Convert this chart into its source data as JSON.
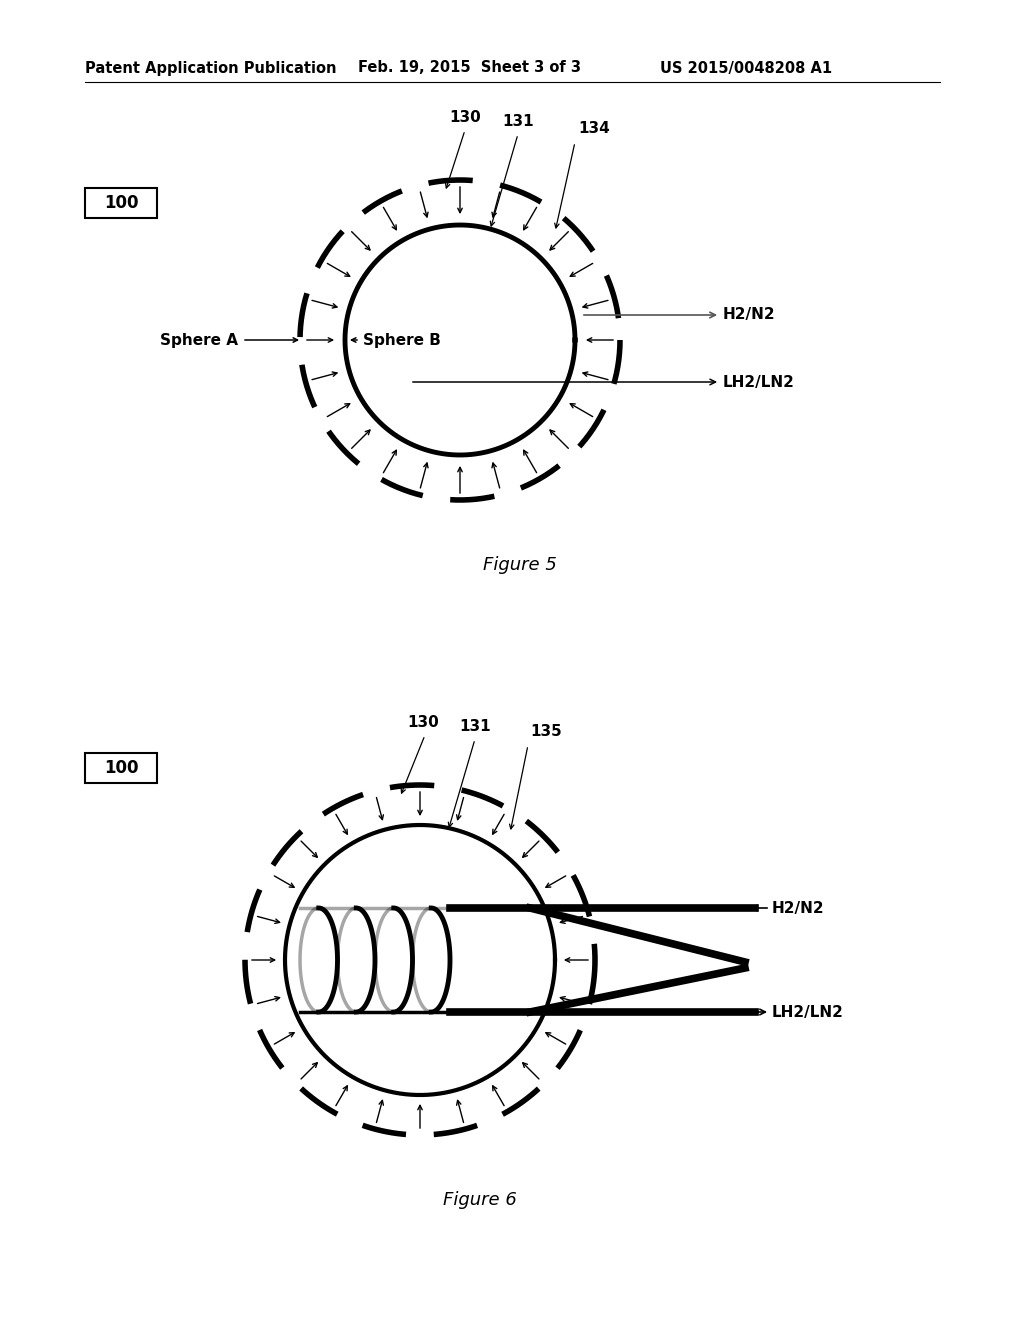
{
  "bg_color": "#ffffff",
  "header_left": "Patent Application Publication",
  "header_mid": "Feb. 19, 2015  Sheet 3 of 3",
  "header_right": "US 2015/0048208 A1",
  "fig5_caption": "Figure 5",
  "fig6_caption": "Figure 6"
}
